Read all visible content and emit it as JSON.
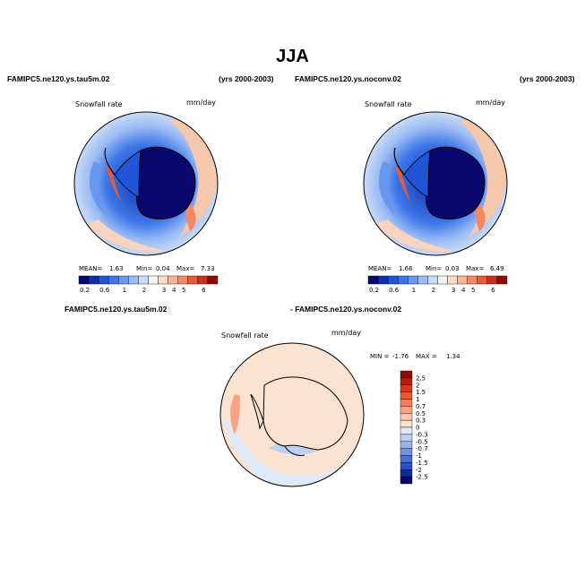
{
  "figure": {
    "season": "JJA",
    "years": "(yrs 2000-2003)"
  },
  "panels": [
    {
      "case": "FAMIPC5.ne120.ys.tau5m.02",
      "years": "(yrs 2000-2003)",
      "variable": "Snowfall rate",
      "units": "mm/day",
      "stats": {
        "mean_label": "MEAN=",
        "mean": "1.63",
        "min_label": "Min=",
        "min": "0.04",
        "max_label": "Max=",
        "max": "7.33"
      }
    },
    {
      "case": "FAMIPC5.ne120.ys.noconv.02",
      "years": "(yrs 2000-2003)",
      "variable": "Snowfall rate",
      "units": "mm/day",
      "stats": {
        "mean_label": "MEAN=",
        "mean": "1.66",
        "min_label": "Min=",
        "min": "0.03",
        "max_label": "Max=",
        "max": "6.49"
      }
    },
    {
      "case_a": "FAMIPC5.ne120.ys.tau5m.02",
      "case_b": "- FAMIPC5.ne120.ys.noconv.02",
      "variable": "Snowfall rate",
      "units": "mm/day",
      "stats": {
        "min_label": "MIN =",
        "min": "-1.76",
        "max_label": "MAX =",
        "max": "1.34"
      }
    }
  ],
  "colorbar_abs": {
    "colors": [
      "#08086e",
      "#0d2fa8",
      "#1f55d6",
      "#3c76e8",
      "#6797ef",
      "#9cbcf4",
      "#c9dbf7",
      "#f5f5f5",
      "#fbdcc7",
      "#f8b497",
      "#f28866",
      "#e35c3c",
      "#c8301c",
      "#8e0c08"
    ],
    "labels": [
      "0.2",
      "0.6",
      "1",
      "2",
      "3",
      "4",
      "5",
      "6"
    ]
  },
  "colorbar_diff": {
    "colors": [
      "#8e0c08",
      "#b81c10",
      "#d63a1c",
      "#e85a32",
      "#f08060",
      "#f5a585",
      "#f9cab0",
      "#fbe3d2",
      "#dfe9f7",
      "#bcd0f3",
      "#97b4ec",
      "#6d92e6",
      "#4470df",
      "#2a4fd0",
      "#0f2aa5",
      "#08086e"
    ],
    "labels": [
      "2.5",
      "2",
      "1.5",
      "1",
      "0.7",
      "0.5",
      "0.3",
      "0",
      "-0.3",
      "-0.5",
      "-0.7",
      "-1",
      "-1.5",
      "-2",
      "-2.5"
    ]
  }
}
